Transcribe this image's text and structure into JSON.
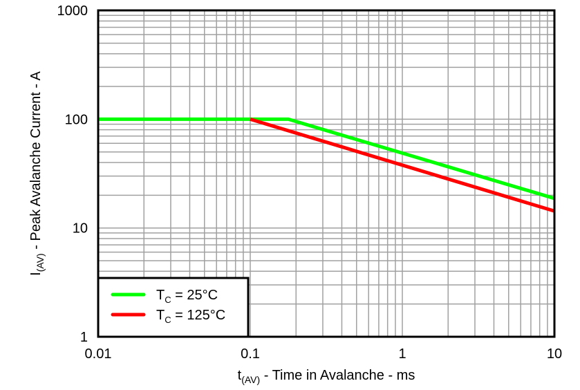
{
  "chart_data": {
    "type": "line",
    "title": "",
    "xlabel": "t(AV) - Time in Avalanche - ms",
    "ylabel": "I(AV) - Peak Avalanche Current - A",
    "xscale": "log",
    "yscale": "log",
    "xlim": [
      0.01,
      10
    ],
    "ylim": [
      1,
      1000
    ],
    "x_ticks": [
      "0.01",
      "0.1",
      "1",
      "10"
    ],
    "y_ticks": [
      "1",
      "10",
      "100",
      "1000"
    ],
    "grid": true,
    "legend_position": "lower left",
    "series": [
      {
        "name": "TC = 25°C",
        "color": "#00ff00",
        "points": [
          [
            0.01,
            100
          ],
          [
            0.178,
            100
          ],
          [
            10,
            18.7
          ]
        ]
      },
      {
        "name": "TC = 125°C",
        "color": "#ff0000",
        "points": [
          [
            0.1,
            100
          ],
          [
            10,
            14.3
          ]
        ]
      }
    ]
  },
  "legend": {
    "items": [
      {
        "label_main": "T",
        "label_sub": "C",
        "label_rest": " = 25°C"
      },
      {
        "label_main": "T",
        "label_sub": "C",
        "label_rest": " = 125°C"
      }
    ]
  },
  "axes": {
    "xlabel_main": "t",
    "xlabel_sub": "(AV)",
    "xlabel_rest": " - Time in Avalanche - ms",
    "ylabel_main": "I",
    "ylabel_sub": "(AV)",
    "ylabel_rest": " - Peak Avalanche Current - A"
  }
}
